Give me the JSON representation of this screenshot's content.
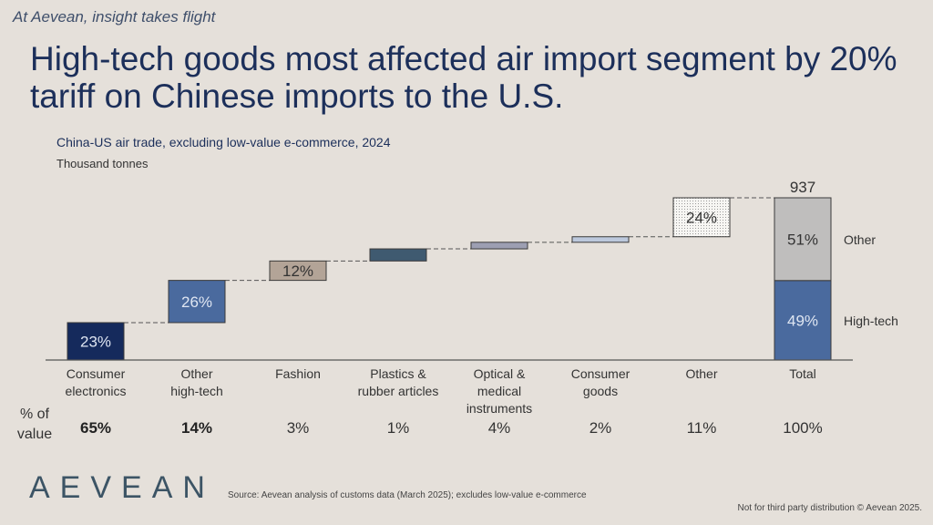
{
  "tagline": "At Aevean, insight takes flight",
  "headline": "High-tech goods most affected air import segment by 20% tariff on Chinese imports to the U.S.",
  "colors": {
    "background": "#e5e0da",
    "title": "#1c2f5a",
    "consumer_electronics": "#152a5c",
    "other_high_tech": "#4a6a9e",
    "fashion": "#b3a497",
    "plastics": "#3f5a70",
    "optical": "#9d9fb2",
    "consumer_goods": "#bcc8dc",
    "other": "#f7f6f3",
    "total_other": "#bfbebd",
    "total_high_tech": "#4a6a9e"
  },
  "chart_data": {
    "type": "bar",
    "subtype": "waterfall",
    "title": "China-US air trade, excluding low-value e-commerce, 2024",
    "ylabel": "Thousand tonnes",
    "xlabel": "",
    "categories": [
      "Consumer electronics",
      "Other high-tech",
      "Fashion",
      "Plastics & rubber articles",
      "Optical & medical instruments",
      "Consumer goods",
      "Other",
      "Total"
    ],
    "category_lines": [
      [
        "Consumer",
        "electronics"
      ],
      [
        "Other",
        "high-tech"
      ],
      [
        "Fashion"
      ],
      [
        "Plastics &",
        "rubber articles"
      ],
      [
        "Optical &",
        "medical",
        "instruments"
      ],
      [
        "Consumer",
        "goods"
      ],
      [
        "Other"
      ],
      [
        "Total"
      ]
    ],
    "values": [
      216,
      244,
      112,
      70,
      38,
      32,
      225,
      937
    ],
    "data_labels": [
      "23%",
      "26%",
      "12%",
      "",
      "",
      "",
      "24%",
      ""
    ],
    "total": 937,
    "total_label": "937",
    "total_breakdown": [
      {
        "name": "High-tech",
        "share": 49,
        "label": "49%"
      },
      {
        "name": "Other",
        "share": 51,
        "label": "51%"
      }
    ],
    "ylim": [
      0,
      937
    ],
    "grid": false,
    "legend": "right-of-total",
    "value_share_row": {
      "label_lines": [
        "% of",
        "value"
      ],
      "values": [
        "65%",
        "14%",
        "3%",
        "1%",
        "4%",
        "2%",
        "11%",
        "100%"
      ],
      "bold": [
        true,
        true,
        false,
        false,
        false,
        false,
        false,
        false
      ]
    }
  },
  "footer": {
    "logo": "AEVEAN",
    "source": "Source: Aevean analysis of customs data (March 2025); excludes low-value e-commerce",
    "copyright": "Not for third party distribution © Aevean 2025."
  }
}
